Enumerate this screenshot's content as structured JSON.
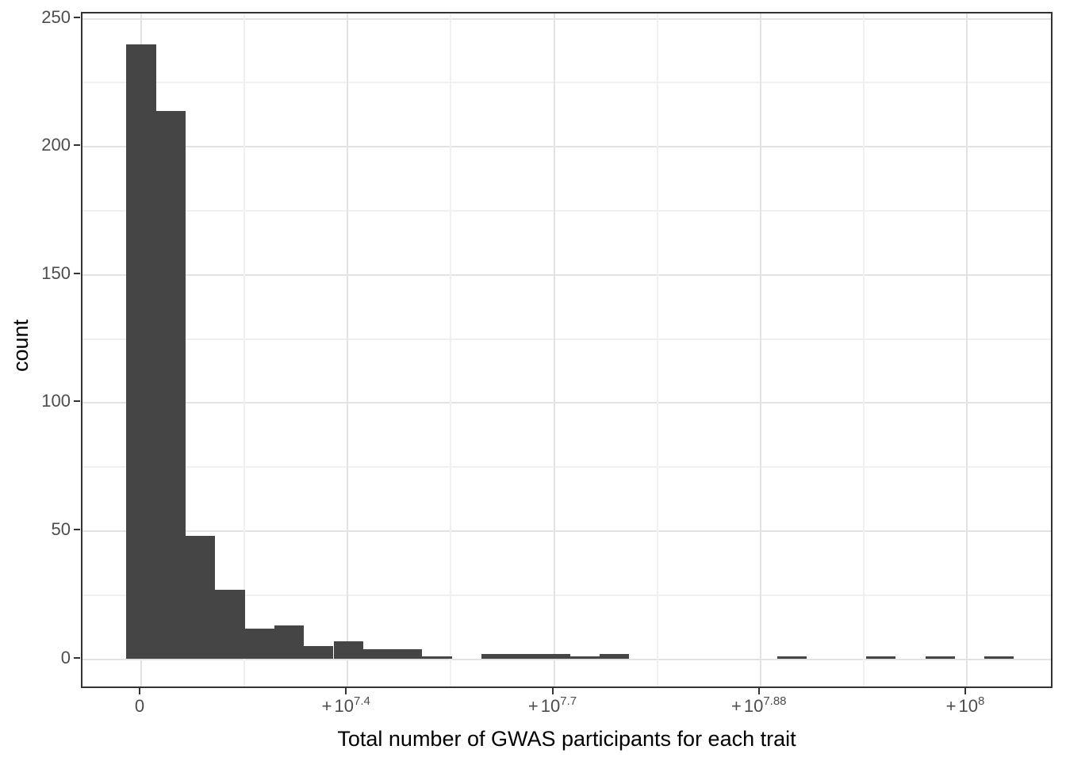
{
  "chart_data": {
    "type": "histogram",
    "title": "",
    "xlabel": "Total number of GWAS participants for each trait",
    "ylabel": "count",
    "bin_counts": [
      240,
      214,
      48,
      27,
      12,
      13,
      5,
      7,
      4,
      4,
      1,
      0,
      2,
      2,
      2,
      1,
      2,
      0,
      0,
      0,
      0,
      0,
      1,
      0,
      0,
      1,
      0,
      1,
      0,
      1
    ],
    "bin_note": "30 equal-width bins along a pseudo-log x axis; first bin centered on the 0 tick",
    "x_ticks": [
      {
        "prefix": "",
        "base": "0",
        "exp": ""
      },
      {
        "prefix": "+",
        "base": "10",
        "exp": "7.4"
      },
      {
        "prefix": "+",
        "base": "10",
        "exp": "7.7"
      },
      {
        "prefix": "+",
        "base": "10",
        "exp": "7.88"
      },
      {
        "prefix": "+",
        "base": "10",
        "exp": "8"
      }
    ],
    "y_ticks": [
      0,
      50,
      100,
      150,
      200,
      250
    ],
    "ylim": [
      0,
      250
    ],
    "grid": true,
    "legend_position": "none",
    "colors": {
      "bar": "#454545",
      "grid_major": "#e3e3e3",
      "grid_minor": "#f0f0f0",
      "panel_border": "#333333",
      "tick_text": "#4d4d4d",
      "axis_title": "#000000",
      "background": "#ffffff"
    }
  }
}
